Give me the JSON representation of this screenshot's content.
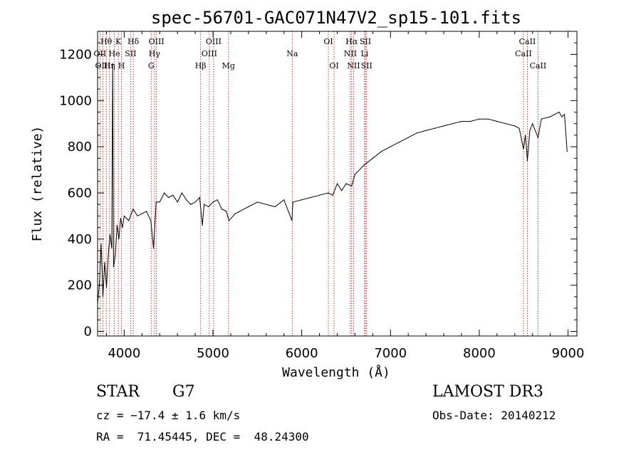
{
  "chart_data": {
    "type": "line",
    "title": "spec-56701-GAC071N47V2_sp15-101.fits",
    "xlabel": "Wavelength (Å)",
    "ylabel": "Flux (relative)",
    "xlim": [
      3700,
      9100
    ],
    "ylim": [
      -20,
      1300
    ],
    "xticks": [
      4000,
      5000,
      6000,
      7000,
      8000,
      9000
    ],
    "yticks": [
      0,
      200,
      400,
      600,
      800,
      1000,
      1200
    ],
    "grid": false,
    "line_color": "#000000",
    "marker_color": "#cc0000",
    "series": [
      {
        "name": "flux",
        "x": [
          3700,
          3720,
          3740,
          3760,
          3780,
          3800,
          3820,
          3840,
          3860,
          3870,
          3880,
          3900,
          3920,
          3940,
          3960,
          3980,
          4000,
          4050,
          4100,
          4150,
          4200,
          4250,
          4300,
          4330,
          4360,
          4400,
          4450,
          4500,
          4550,
          4600,
          4650,
          4700,
          4750,
          4800,
          4850,
          4880,
          4900,
          4950,
          5000,
          5050,
          5100,
          5150,
          5180,
          5250,
          5300,
          5400,
          5500,
          5600,
          5700,
          5800,
          5890,
          5900,
          6000,
          6100,
          6200,
          6300,
          6350,
          6400,
          6450,
          6500,
          6563,
          6600,
          6700,
          6800,
          6900,
          7000,
          7100,
          7200,
          7300,
          7400,
          7500,
          7600,
          7700,
          7800,
          7900,
          8000,
          8100,
          8200,
          8300,
          8400,
          8450,
          8498,
          8520,
          8542,
          8570,
          8600,
          8662,
          8700,
          8800,
          8850,
          8900,
          8930,
          8960,
          8990
        ],
        "y": [
          120,
          200,
          380,
          150,
          300,
          190,
          330,
          420,
          360,
          1160,
          280,
          330,
          460,
          400,
          490,
          450,
          500,
          480,
          530,
          500,
          510,
          520,
          480,
          360,
          560,
          560,
          600,
          580,
          590,
          560,
          600,
          570,
          550,
          560,
          580,
          460,
          550,
          540,
          560,
          570,
          530,
          520,
          480,
          510,
          520,
          540,
          560,
          550,
          540,
          570,
          480,
          560,
          570,
          580,
          590,
          600,
          590,
          640,
          610,
          640,
          630,
          680,
          720,
          750,
          780,
          800,
          820,
          840,
          860,
          870,
          880,
          890,
          900,
          910,
          910,
          920,
          920,
          910,
          900,
          890,
          880,
          790,
          850,
          740,
          870,
          900,
          840,
          920,
          930,
          940,
          950,
          930,
          940,
          780
        ]
      }
    ],
    "lines": [
      {
        "name": "Hθ",
        "x": 3798,
        "row": 0
      },
      {
        "name": "OII",
        "x": 3727,
        "row": 1
      },
      {
        "name": "OIII",
        "x": 3760,
        "row": 2
      },
      {
        "name": "He",
        "x": 3889,
        "row": 1
      },
      {
        "name": "Hη",
        "x": 3835,
        "row": 2
      },
      {
        "name": "K",
        "x": 3934,
        "row": 0
      },
      {
        "name": "H",
        "x": 3969,
        "row": 2
      },
      {
        "name": "SII",
        "x": 4072,
        "row": 1
      },
      {
        "name": "Hδ",
        "x": 4102,
        "row": 0
      },
      {
        "name": "OIII",
        "x": 4363,
        "row": 0
      },
      {
        "name": "Hγ",
        "x": 4341,
        "row": 1
      },
      {
        "name": "G",
        "x": 4304,
        "row": 2
      },
      {
        "name": "Hβ",
        "x": 4861,
        "row": 2
      },
      {
        "name": "OIII",
        "x": 5007,
        "row": 0
      },
      {
        "name": "OIII",
        "x": 4959,
        "row": 1
      },
      {
        "name": "Mg",
        "x": 5175,
        "row": 2
      },
      {
        "name": "Na",
        "x": 5893,
        "row": 1
      },
      {
        "name": "OI",
        "x": 6300,
        "row": 0
      },
      {
        "name": "OI",
        "x": 6364,
        "row": 2
      },
      {
        "name": "Hα",
        "x": 6563,
        "row": 0
      },
      {
        "name": "NII",
        "x": 6548,
        "row": 1
      },
      {
        "name": "NII",
        "x": 6584,
        "row": 2
      },
      {
        "name": "SII",
        "x": 6717,
        "row": 0
      },
      {
        "name": "Li",
        "x": 6708,
        "row": 1
      },
      {
        "name": "SII",
        "x": 6731,
        "row": 2
      },
      {
        "name": "CaII",
        "x": 8542,
        "row": 0
      },
      {
        "name": "CaII",
        "x": 8498,
        "row": 1
      },
      {
        "name": "CaII",
        "x": 8662,
        "row": 2
      }
    ]
  },
  "footer": {
    "object_class": "STAR",
    "subclass": "G7",
    "survey": "LAMOST DR3",
    "redshift": "cz = −17.4 ± 1.6 km/s",
    "obs_date": "Obs-Date: 20140212",
    "coords": "RA =  71.45445, DEC =  48.24300"
  }
}
